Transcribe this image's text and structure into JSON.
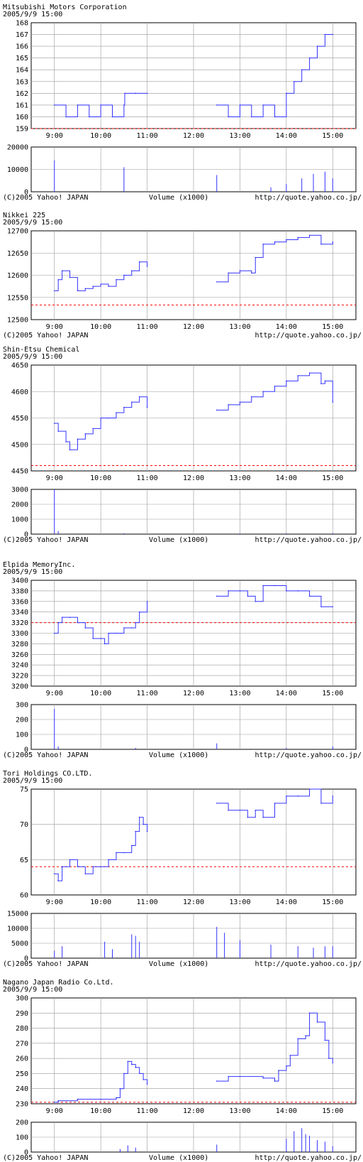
{
  "footer": {
    "copyright": "(C)2005 Yahoo! JAPAN",
    "volume_label": "Volume (x1000)",
    "url": "http://quote.yahoo.co.jp/"
  },
  "time_ticks": [
    "9:00",
    "10:00",
    "11:00",
    "12:00",
    "13:00",
    "14:00",
    "15:00"
  ],
  "colors": {
    "price_line": "#3333ff",
    "reference_line": "#ff0000",
    "grid": "#999999"
  },
  "chart_data": [
    {
      "type": "line",
      "title": "Mitsubishi Motors Corporation",
      "timestamp": "2005/9/9 15:00",
      "ylim": [
        159,
        168
      ],
      "yticks": [
        159,
        160,
        161,
        162,
        163,
        164,
        165,
        166,
        167,
        168
      ],
      "reference": 159,
      "series": [
        {
          "segment": "morning",
          "x": [
            "9:00",
            "9:15",
            "9:30",
            "9:45",
            "10:00",
            "10:15",
            "10:30",
            "10:31",
            "10:45",
            "11:00"
          ],
          "values": [
            161,
            160,
            161,
            160,
            161,
            160,
            161,
            162,
            162,
            162
          ]
        },
        {
          "segment": "afternoon",
          "x": [
            "12:30",
            "12:45",
            "13:00",
            "13:15",
            "13:30",
            "13:45",
            "14:00",
            "14:10",
            "14:20",
            "14:30",
            "14:40",
            "14:50",
            "15:00"
          ],
          "values": [
            161,
            160,
            161,
            160,
            161,
            160,
            162,
            163,
            164,
            165,
            166,
            167,
            167
          ]
        }
      ],
      "volume": {
        "ylim": [
          0,
          20000
        ],
        "yticks": [
          0,
          10000,
          20000
        ],
        "x": [
          "9:00",
          "10:30",
          "12:30",
          "13:40",
          "14:00",
          "14:20",
          "14:35",
          "14:50",
          "15:00"
        ],
        "values": [
          14000,
          11000,
          7500,
          2000,
          3500,
          6000,
          8000,
          9000,
          6000
        ]
      }
    },
    {
      "type": "line",
      "title": "Nikkei 225",
      "timestamp": "2005/9/9 15:00",
      "ylim": [
        12500,
        12700
      ],
      "yticks": [
        12500,
        12550,
        12600,
        12650,
        12700
      ],
      "reference": 12533,
      "series": [
        {
          "segment": "morning",
          "x": [
            "9:00",
            "9:05",
            "9:10",
            "9:20",
            "9:30",
            "9:40",
            "9:50",
            "10:00",
            "10:10",
            "10:20",
            "10:30",
            "10:40",
            "10:50",
            "11:00"
          ],
          "values": [
            12565,
            12590,
            12610,
            12595,
            12565,
            12570,
            12575,
            12580,
            12575,
            12590,
            12600,
            12610,
            12630,
            12620
          ]
        },
        {
          "segment": "afternoon",
          "x": [
            "12:30",
            "12:45",
            "13:00",
            "13:15",
            "13:20",
            "13:30",
            "13:45",
            "14:00",
            "14:15",
            "14:30",
            "14:45",
            "15:00"
          ],
          "values": [
            12585,
            12605,
            12610,
            12605,
            12640,
            12670,
            12675,
            12680,
            12685,
            12690,
            12670,
            12675
          ]
        }
      ]
    },
    {
      "type": "line",
      "title": "Shin-Etsu Chemical",
      "timestamp": "2005/9/9 15:00",
      "ylim": [
        4450,
        4650
      ],
      "yticks": [
        4450,
        4500,
        4550,
        4600,
        4650
      ],
      "reference": 4460,
      "series": [
        {
          "segment": "morning",
          "x": [
            "9:00",
            "9:05",
            "9:15",
            "9:20",
            "9:30",
            "9:40",
            "9:50",
            "10:00",
            "10:10",
            "10:20",
            "10:30",
            "10:40",
            "10:50",
            "11:00"
          ],
          "values": [
            4540,
            4525,
            4505,
            4490,
            4510,
            4520,
            4530,
            4550,
            4550,
            4560,
            4570,
            4580,
            4590,
            4570
          ]
        },
        {
          "segment": "afternoon",
          "x": [
            "12:30",
            "12:45",
            "13:00",
            "13:15",
            "13:30",
            "13:45",
            "14:00",
            "14:15",
            "14:30",
            "14:45",
            "14:50",
            "15:00"
          ],
          "values": [
            4565,
            4575,
            4580,
            4590,
            4600,
            4610,
            4620,
            4630,
            4635,
            4615,
            4620,
            4580
          ]
        }
      ],
      "volume": {
        "ylim": [
          0,
          3000
        ],
        "yticks": [
          0,
          1000,
          2000,
          3000
        ],
        "x": [
          "9:00",
          "9:05",
          "10:30",
          "13:00",
          "14:00",
          "15:00"
        ],
        "values": [
          3000,
          200,
          60,
          50,
          60,
          70
        ]
      }
    },
    {
      "type": "line",
      "title": "Elpida MemoryInc.",
      "timestamp": "2005/9/9 15:00",
      "ylim": [
        3200,
        3400
      ],
      "yticks": [
        3200,
        3220,
        3240,
        3260,
        3280,
        3300,
        3320,
        3340,
        3360,
        3380,
        3400
      ],
      "reference": 3320,
      "series": [
        {
          "segment": "morning",
          "x": [
            "9:00",
            "9:05",
            "9:10",
            "9:20",
            "9:30",
            "9:40",
            "9:50",
            "10:00",
            "10:05",
            "10:10",
            "10:20",
            "10:30",
            "10:40",
            "10:45",
            "10:50",
            "11:00"
          ],
          "values": [
            3300,
            3320,
            3330,
            3330,
            3320,
            3310,
            3290,
            3290,
            3280,
            3300,
            3300,
            3310,
            3310,
            3320,
            3340,
            3360
          ]
        },
        {
          "segment": "afternoon",
          "x": [
            "12:30",
            "12:45",
            "13:00",
            "13:10",
            "13:20",
            "13:30",
            "13:45",
            "14:00",
            "14:15",
            "14:30",
            "14:45",
            "15:00"
          ],
          "values": [
            3370,
            3380,
            3380,
            3370,
            3360,
            3390,
            3390,
            3380,
            3380,
            3370,
            3350,
            3350
          ]
        }
      ],
      "volume": {
        "ylim": [
          0,
          300
        ],
        "yticks": [
          0,
          100,
          200,
          300
        ],
        "x": [
          "9:00",
          "9:05",
          "10:45",
          "12:30",
          "14:00",
          "15:00"
        ],
        "values": [
          270,
          20,
          10,
          40,
          10,
          20
        ]
      }
    },
    {
      "type": "line",
      "title": "Tori Holdings CO.LTD.",
      "timestamp": "2005/9/9 15:00",
      "ylim": [
        60,
        75
      ],
      "yticks": [
        60,
        65,
        70,
        75
      ],
      "reference": 64,
      "series": [
        {
          "segment": "morning",
          "x": [
            "9:00",
            "9:05",
            "9:10",
            "9:20",
            "9:30",
            "9:40",
            "9:50",
            "10:00",
            "10:10",
            "10:20",
            "10:30",
            "10:40",
            "10:45",
            "10:50",
            "10:55",
            "11:00"
          ],
          "values": [
            63,
            62,
            64,
            65,
            64,
            63,
            64,
            64,
            65,
            66,
            66,
            67,
            69,
            71,
            70,
            69
          ]
        },
        {
          "segment": "afternoon",
          "x": [
            "12:30",
            "12:45",
            "13:00",
            "13:10",
            "13:20",
            "13:30",
            "13:45",
            "14:00",
            "14:15",
            "14:30",
            "14:45",
            "15:00"
          ],
          "values": [
            73,
            72,
            72,
            71,
            72,
            71,
            73,
            74,
            74,
            75,
            73,
            74
          ]
        }
      ],
      "volume": {
        "ylim": [
          0,
          15000
        ],
        "yticks": [
          0,
          5000,
          10000,
          15000
        ],
        "x": [
          "9:00",
          "9:10",
          "10:05",
          "10:15",
          "10:40",
          "10:45",
          "10:50",
          "12:30",
          "12:40",
          "13:00",
          "13:40",
          "14:15",
          "14:35",
          "14:50",
          "15:00"
        ],
        "values": [
          2500,
          4000,
          5500,
          3000,
          8000,
          7500,
          5500,
          10500,
          8500,
          6000,
          4500,
          4000,
          3500,
          4000,
          4000
        ]
      }
    },
    {
      "type": "line",
      "title": "Nagano Japan Radio Co.Ltd.",
      "timestamp": "2005/9/9 15:00",
      "ylim": [
        230,
        300
      ],
      "yticks": [
        230,
        240,
        250,
        260,
        270,
        280,
        290,
        300
      ],
      "reference": 231,
      "series": [
        {
          "segment": "morning",
          "x": [
            "9:00",
            "9:05",
            "9:30",
            "10:00",
            "10:20",
            "10:25",
            "10:30",
            "10:35",
            "10:40",
            "10:45",
            "10:50",
            "10:55",
            "11:00"
          ],
          "values": [
            231,
            232,
            233,
            233,
            234,
            240,
            250,
            258,
            256,
            254,
            250,
            246,
            243
          ]
        },
        {
          "segment": "afternoon",
          "x": [
            "12:30",
            "12:45",
            "13:00",
            "13:30",
            "13:45",
            "13:50",
            "14:00",
            "14:05",
            "14:15",
            "14:25",
            "14:30",
            "14:40",
            "14:50",
            "14:55",
            "15:00"
          ],
          "values": [
            245,
            248,
            248,
            247,
            245,
            252,
            255,
            262,
            273,
            275,
            290,
            284,
            272,
            260,
            257
          ]
        }
      ],
      "volume": {
        "ylim": [
          0,
          200
        ],
        "yticks": [
          0,
          100,
          200
        ],
        "x": [
          "10:25",
          "10:35",
          "10:45",
          "12:30",
          "14:00",
          "14:10",
          "14:20",
          "14:25",
          "14:30",
          "14:40",
          "14:50",
          "15:00"
        ],
        "values": [
          20,
          45,
          30,
          50,
          90,
          140,
          160,
          120,
          110,
          80,
          70,
          40
        ]
      }
    }
  ]
}
